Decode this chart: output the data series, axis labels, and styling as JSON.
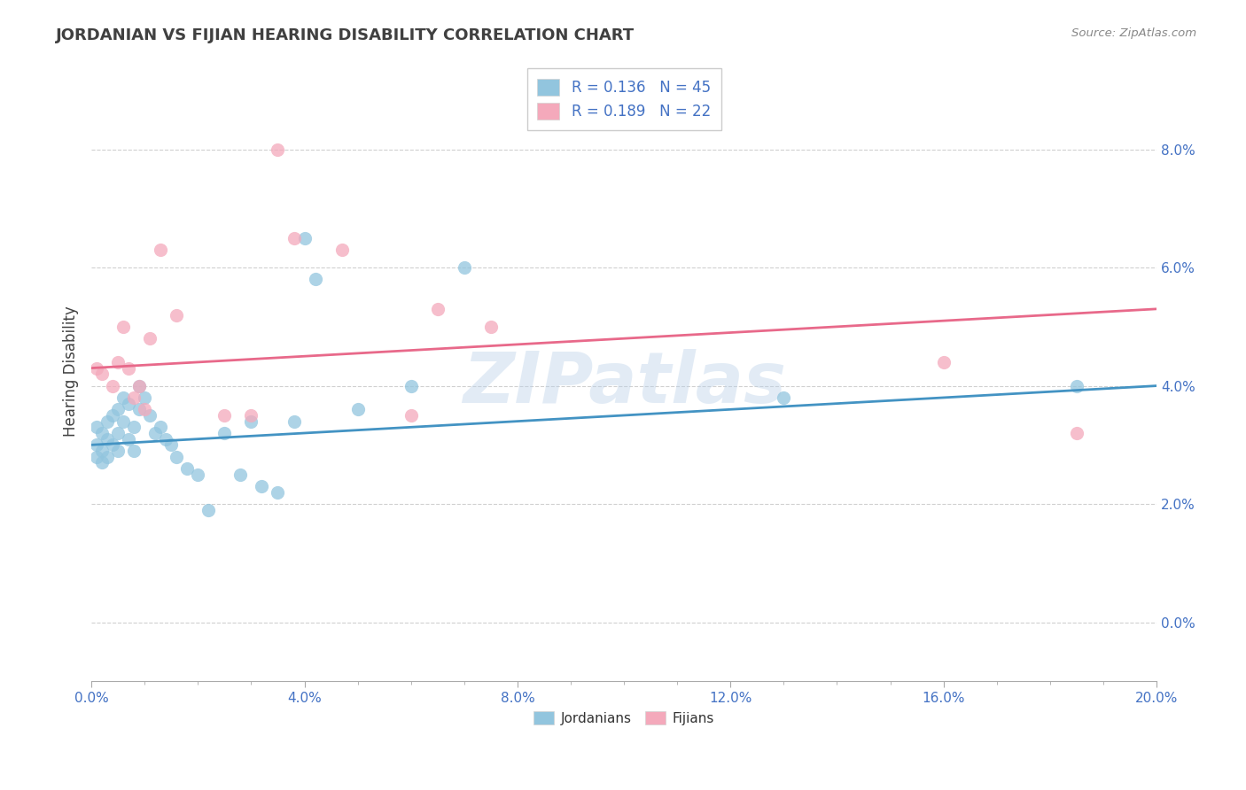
{
  "title": "JORDANIAN VS FIJIAN HEARING DISABILITY CORRELATION CHART",
  "source": "Source: ZipAtlas.com",
  "ylabel": "Hearing Disability",
  "xlim": [
    0.0,
    0.2
  ],
  "ylim": [
    -0.01,
    0.095
  ],
  "xtick_labels": [
    "0.0%",
    "4.0%",
    "8.0%",
    "12.0%",
    "16.0%",
    "20.0%"
  ],
  "xtick_vals": [
    0.0,
    0.04,
    0.08,
    0.12,
    0.16,
    0.2
  ],
  "ytick_vals": [
    0.0,
    0.02,
    0.04,
    0.06,
    0.08
  ],
  "ytick_labels": [
    "0.0%",
    "2.0%",
    "4.0%",
    "6.0%",
    "8.0%"
  ],
  "jordan_color": "#92c5de",
  "fijian_color": "#f4a9bb",
  "jordan_line_color": "#4393c3",
  "fijian_line_color": "#e8698a",
  "jordan_R": 0.136,
  "jordan_N": 45,
  "fijian_R": 0.189,
  "fijian_N": 22,
  "background_color": "#ffffff",
  "watermark": "ZIPatlas",
  "grid_color": "#d0d0d0",
  "tick_color": "#4472c4",
  "title_color": "#404040",
  "label_color": "#404040",
  "jordan_x": [
    0.001,
    0.001,
    0.001,
    0.002,
    0.002,
    0.002,
    0.003,
    0.003,
    0.003,
    0.004,
    0.004,
    0.005,
    0.005,
    0.005,
    0.006,
    0.006,
    0.007,
    0.007,
    0.008,
    0.008,
    0.009,
    0.009,
    0.01,
    0.011,
    0.012,
    0.013,
    0.014,
    0.015,
    0.016,
    0.018,
    0.02,
    0.022,
    0.025,
    0.028,
    0.03,
    0.032,
    0.035,
    0.038,
    0.04,
    0.042,
    0.05,
    0.06,
    0.07,
    0.13,
    0.185
  ],
  "jordan_y": [
    0.03,
    0.028,
    0.033,
    0.032,
    0.029,
    0.027,
    0.034,
    0.031,
    0.028,
    0.035,
    0.03,
    0.036,
    0.032,
    0.029,
    0.038,
    0.034,
    0.037,
    0.031,
    0.033,
    0.029,
    0.04,
    0.036,
    0.038,
    0.035,
    0.032,
    0.033,
    0.031,
    0.03,
    0.028,
    0.026,
    0.025,
    0.019,
    0.032,
    0.025,
    0.034,
    0.023,
    0.022,
    0.034,
    0.065,
    0.058,
    0.036,
    0.04,
    0.06,
    0.038,
    0.04
  ],
  "fijian_x": [
    0.001,
    0.002,
    0.004,
    0.005,
    0.006,
    0.007,
    0.008,
    0.009,
    0.01,
    0.011,
    0.013,
    0.016,
    0.025,
    0.03,
    0.035,
    0.038,
    0.047,
    0.06,
    0.065,
    0.075,
    0.16,
    0.185
  ],
  "fijian_y": [
    0.043,
    0.042,
    0.04,
    0.044,
    0.05,
    0.043,
    0.038,
    0.04,
    0.036,
    0.048,
    0.063,
    0.052,
    0.035,
    0.035,
    0.08,
    0.065,
    0.063,
    0.035,
    0.053,
    0.05,
    0.044,
    0.032
  ]
}
